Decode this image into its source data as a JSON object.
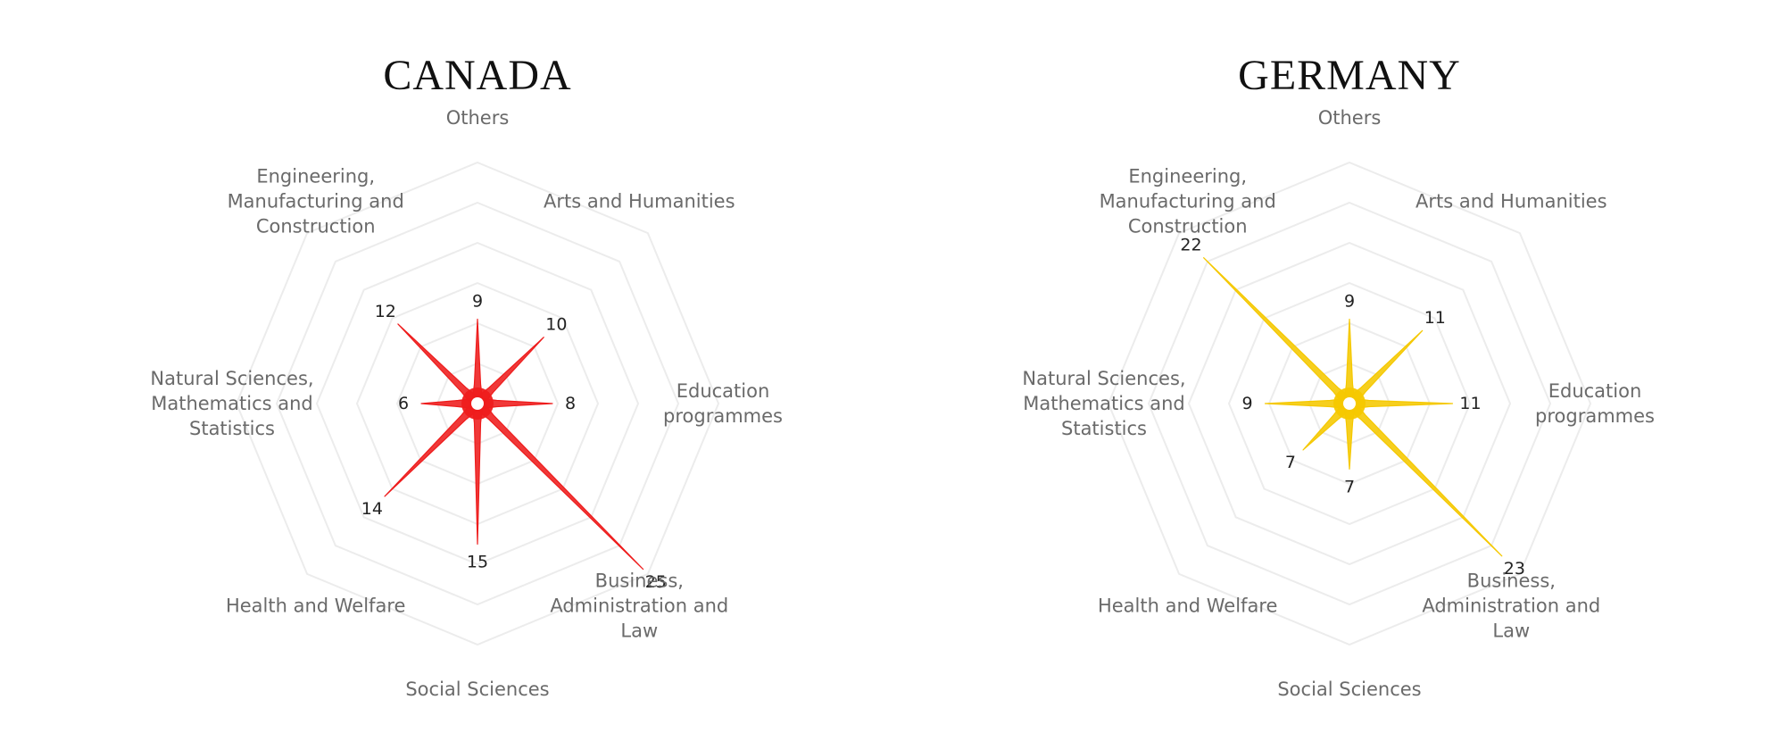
{
  "chart_data": [
    {
      "type": "radar",
      "title": "CANADA",
      "color": "#EE1C1C",
      "categories": [
        "Others",
        "Arts and Humanities",
        "Education\nprogrammes",
        "Business,\nAdministration and\nLaw",
        "Social Sciences",
        "Health and Welfare",
        "Natural Sciences,\nMathematics and\nStatistics",
        "Engineering,\nManufacturing and\nConstruction"
      ],
      "values": [
        9,
        10,
        8,
        25,
        15,
        14,
        6,
        12
      ]
    },
    {
      "type": "radar",
      "title": "GERMANY",
      "color": "#F5C800",
      "categories": [
        "Others",
        "Arts and Humanities",
        "Education\nprogrammes",
        "Business,\nAdministration and\nLaw",
        "Social Sciences",
        "Health and Welfare",
        "Natural Sciences,\nMathematics and\nStatistics",
        "Engineering,\nManufacturing and\nConstruction"
      ],
      "values": [
        9,
        11,
        11,
        23,
        7,
        7,
        9,
        22
      ]
    }
  ]
}
